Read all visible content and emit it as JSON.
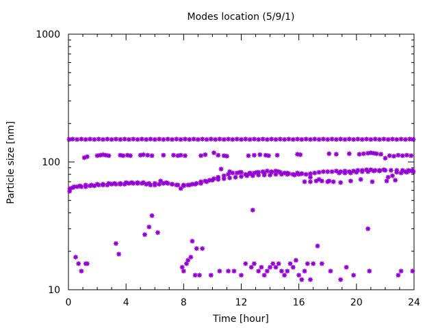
{
  "chart_data": {
    "type": "scatter",
    "title": "Modes location (5/9/1)",
    "xlabel": "Time [hour]",
    "ylabel": "Particle size [nm]",
    "xlim": [
      0,
      24
    ],
    "ylim": [
      10,
      1000
    ],
    "yscale": "log",
    "grid": false,
    "xticks": [
      "0",
      "4",
      "8",
      "12",
      "16",
      "20",
      "24"
    ],
    "yticks": [
      "10",
      "100",
      "1000"
    ],
    "marker_color": "#9400d3",
    "x": [
      0.08,
      0.4,
      0.8,
      1.2,
      1.6,
      2,
      2.4,
      2.8,
      3.2,
      3.6,
      4,
      4.4,
      4.8,
      5.2,
      5.6,
      6,
      6.4,
      6.8,
      7.2,
      7.6,
      8,
      8.4,
      8.8,
      9.2,
      9.6,
      10,
      10.4,
      10.8,
      11.2,
      11.6,
      12,
      12.4,
      12.8,
      13.2,
      13.6,
      14,
      14.4,
      14.8,
      15.2,
      15.6,
      16,
      16.4,
      16.8,
      17.2,
      17.6,
      18,
      18.4,
      18.8,
      19.2,
      19.6,
      20,
      20.4,
      20.8,
      21.2,
      21.6,
      22,
      22.4,
      22.8,
      23.2,
      23.6,
      23.9,
      0.05,
      0.3,
      0.6,
      0.9,
      1.2,
      1.5,
      1.8,
      2.1,
      2.4,
      2.7,
      3,
      3.3,
      3.6,
      3.9,
      4.2,
      4.5,
      4.8,
      5.1,
      5.4,
      5.7,
      6,
      6.3,
      6.6,
      6.9,
      7.2,
      7.5,
      7.8,
      8.1,
      8.4,
      8.7,
      9,
      9.3,
      9.6,
      9.9,
      10.2,
      10.5,
      10.8,
      11.1,
      11.4,
      11.7,
      12,
      12.3,
      12.6,
      12.9,
      13.2,
      13.5,
      13.8,
      14.1,
      14.4,
      14.7,
      15,
      15.3,
      15.6,
      15.9,
      16.2,
      16.5,
      16.8,
      17.1,
      17.4,
      17.7,
      18,
      18.3,
      18.6,
      18.9,
      19.2,
      19.5,
      19.8,
      20.1,
      20.4,
      20.7,
      21,
      21.3,
      21.6,
      21.9,
      22.2,
      22.5,
      22.8,
      23.1,
      23.4,
      23.7,
      23.95,
      1.1,
      1.3,
      2,
      2.2,
      2.4,
      2.6,
      2.8,
      3.6,
      3.8,
      4.1,
      4.3,
      5,
      5.2,
      5.5,
      5.8,
      6.6,
      7.3,
      7.6,
      7.8,
      8.1,
      9.2,
      9.5,
      10.1,
      10.4,
      10.8,
      11,
      12.5,
      12.9,
      13.3,
      13.7,
      13.9,
      14.5,
      15.9,
      16.1,
      18.1,
      18.6,
      19.5,
      20.2,
      20.5,
      20.8,
      21,
      21.2,
      21.4,
      21.7,
      22,
      22.3,
      22.6,
      22.9,
      23.2,
      23.5,
      23.8,
      0.1,
      0.3,
      0.6,
      0.9,
      1.2,
      1.5,
      1.8,
      2.1,
      2.4,
      2.7,
      3,
      3.3,
      3.6,
      3.9,
      4.2,
      4.5,
      4.8,
      5.1,
      5.4,
      5.7,
      6,
      6.3,
      6.6,
      6.9,
      7.2,
      7.5,
      7.8,
      8,
      8.3,
      8.6,
      8.9,
      9.2,
      9.5,
      9.8,
      10.1,
      10.4,
      10.8,
      11.1,
      11.4,
      11.7,
      12,
      12.3,
      12.6,
      12.9,
      13.2,
      13.5,
      13.8,
      14.1,
      14.4,
      14.7,
      15,
      15.3,
      15.6,
      15.9,
      16.2,
      16.5,
      16.8,
      17.1,
      17.4,
      17.7,
      18,
      18.3,
      18.6,
      18.9,
      19.2,
      19.5,
      19.8,
      20.1,
      20.4,
      20.7,
      21,
      21.3,
      21.6,
      21.9,
      22.2,
      22.5,
      22.8,
      23.1,
      23.4,
      23.7,
      23.95,
      10.6,
      11.2,
      11.9,
      12.6,
      13.1,
      13.6,
      14.1,
      14.6,
      15.2,
      15.7,
      16.2,
      16.8,
      17.4,
      18.1,
      18.9,
      19.6,
      20.3,
      21.1,
      22.1,
      22.7,
      23.5,
      0.5,
      0.9,
      1.2,
      3.3,
      3.5,
      5.3,
      5.6,
      5.8,
      6.2,
      8,
      8.3,
      8.6,
      8.9,
      9.3,
      12.8,
      17.3,
      20.8,
      0.7,
      1.3,
      7.9,
      8.2,
      8.5,
      8.8,
      9.1,
      9.9,
      10.5,
      11.1,
      11.5,
      12,
      12.3,
      12.7,
      12.9,
      13.2,
      13.4,
      13.6,
      13.8,
      14,
      14.2,
      14.4,
      14.6,
      14.8,
      15,
      15.2,
      15.4,
      15.6,
      15.8,
      16,
      16.2,
      16.4,
      16.6,
      16.8,
      17,
      17.6,
      18.2,
      18.9,
      19.3,
      19.8,
      20.9,
      22.9,
      23.1,
      23.9
    ],
    "y": [
      59,
      64,
      65,
      66,
      66,
      67,
      67,
      68,
      68,
      68,
      69,
      69,
      69,
      69,
      68,
      68,
      71,
      69,
      67,
      66,
      65,
      66,
      67,
      68,
      70,
      72,
      73,
      74,
      75,
      76,
      77,
      78,
      78,
      79,
      79,
      79,
      80,
      80,
      80,
      80,
      80,
      70,
      70,
      71,
      71,
      70,
      70,
      82,
      82,
      82,
      83,
      84,
      84,
      85,
      85,
      86,
      86,
      86,
      86,
      86,
      86,
      150,
      151,
      150,
      151,
      150,
      151,
      150,
      151,
      150,
      151,
      150,
      151,
      150,
      151,
      150,
      151,
      150,
      151,
      150,
      151,
      150,
      151,
      150,
      151,
      150,
      151,
      150,
      151,
      150,
      151,
      150,
      151,
      150,
      151,
      150,
      151,
      150,
      151,
      150,
      151,
      150,
      151,
      150,
      151,
      150,
      151,
      150,
      151,
      150,
      151,
      150,
      151,
      150,
      151,
      150,
      151,
      150,
      151,
      150,
      151,
      150,
      151,
      150,
      151,
      150,
      151,
      150,
      151,
      150,
      151,
      150,
      151,
      150,
      151,
      150,
      151,
      150,
      151,
      150,
      151,
      150,
      108,
      110,
      112,
      113,
      114,
      113,
      112,
      113,
      112,
      113,
      112,
      113,
      114,
      113,
      112,
      113,
      113,
      112,
      113,
      112,
      112,
      114,
      118,
      113,
      112,
      111,
      112,
      113,
      114,
      113,
      112,
      113,
      115,
      114,
      116,
      115,
      116,
      115,
      116,
      117,
      118,
      117,
      116,
      115,
      107,
      112,
      111,
      113,
      112,
      113,
      112,
      62,
      63,
      64,
      64,
      64,
      65,
      65,
      66,
      66,
      66,
      67,
      67,
      67,
      67,
      68,
      68,
      68,
      68,
      67,
      66,
      66,
      67,
      68,
      68,
      67,
      66,
      62,
      66,
      66,
      67,
      68,
      70,
      71,
      72,
      74,
      76,
      78,
      80,
      82,
      82,
      83,
      80,
      81,
      82,
      83,
      84,
      85,
      84,
      85,
      83,
      82,
      81,
      80,
      82,
      81,
      80,
      81,
      82,
      83,
      84,
      84,
      84,
      85,
      84,
      85,
      84,
      85,
      86,
      86,
      87,
      87,
      86,
      86,
      87,
      76,
      78,
      83,
      82,
      84,
      85,
      84,
      88,
      84,
      83,
      82,
      83,
      81,
      83,
      84,
      82,
      79,
      81,
      76,
      73,
      71,
      69,
      71,
      73,
      70,
      71,
      72,
      83,
      18,
      14,
      16,
      23,
      19,
      27,
      31,
      38,
      28,
      14,
      17,
      24,
      21,
      21,
      42,
      22,
      30,
      16,
      16,
      15,
      16,
      18,
      13,
      13,
      13,
      14,
      14,
      14,
      13,
      16,
      15,
      16,
      14,
      15,
      13,
      14,
      15,
      16,
      15,
      16,
      14,
      13,
      14,
      16,
      15,
      17,
      13,
      12,
      14,
      16,
      12,
      16,
      16,
      14,
      12,
      15,
      13,
      14,
      13,
      14,
      14
    ]
  }
}
